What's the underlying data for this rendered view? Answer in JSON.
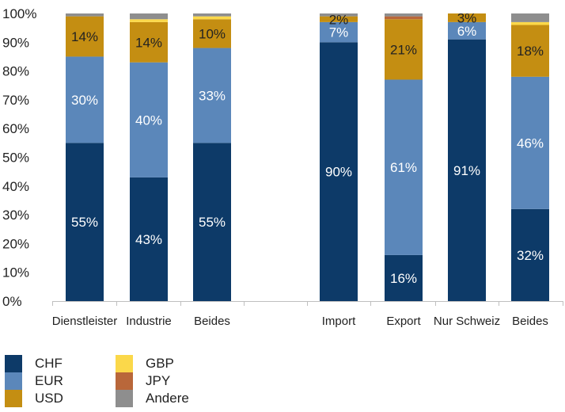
{
  "chart_data": {
    "type": "bar",
    "stacked": true,
    "ylim": [
      0,
      100
    ],
    "yticks": [
      "0%",
      "10%",
      "20%",
      "30%",
      "40%",
      "50%",
      "60%",
      "70%",
      "80%",
      "90%",
      "100%"
    ],
    "grid": false,
    "legend_position": "bottom-left",
    "categories": [
      "Dienstleister",
      "Industrie",
      "Beides",
      "Import",
      "Export",
      "Nur Schweiz",
      "Beides"
    ],
    "series": [
      {
        "name": "CHF",
        "color": "#0d3a68",
        "values": [
          55,
          43,
          55,
          90,
          16,
          91,
          32
        ]
      },
      {
        "name": "EUR",
        "color": "#5b87ba",
        "values": [
          30,
          40,
          33,
          7,
          61,
          6,
          46
        ]
      },
      {
        "name": "USD",
        "color": "#c48e12",
        "values": [
          14,
          14,
          10,
          2,
          21,
          3,
          18
        ]
      },
      {
        "name": "GBP",
        "color": "#fbd84a",
        "values": [
          0,
          1,
          1,
          0,
          0,
          0,
          1
        ]
      },
      {
        "name": "JPY",
        "color": "#b9673a",
        "values": [
          0,
          0,
          0,
          0,
          1,
          0,
          0
        ]
      },
      {
        "name": "Andere",
        "color": "#8e8e8e",
        "values": [
          1,
          2,
          1,
          1,
          1,
          0,
          3
        ]
      }
    ],
    "data_labels": [
      {
        "series": 0,
        "labels": [
          "55%",
          "43%",
          "55%",
          "90%",
          "16%",
          "91%",
          "32%"
        ]
      },
      {
        "series": 1,
        "labels": [
          "30%",
          "40%",
          "33%",
          "7%",
          "61%",
          "6%",
          "46%"
        ]
      },
      {
        "series": 2,
        "labels": [
          "14%",
          "14%",
          "10%",
          "2%",
          "21%",
          "3%",
          "18%"
        ]
      }
    ]
  },
  "legend": {
    "items": [
      {
        "label": "CHF",
        "color": "#0d3a68"
      },
      {
        "label": "EUR",
        "color": "#5b87ba"
      },
      {
        "label": "USD",
        "color": "#c48e12"
      },
      {
        "label": "GBP",
        "color": "#fbd84a"
      },
      {
        "label": "JPY",
        "color": "#b9673a"
      },
      {
        "label": "Andere",
        "color": "#8e8e8e"
      }
    ]
  }
}
